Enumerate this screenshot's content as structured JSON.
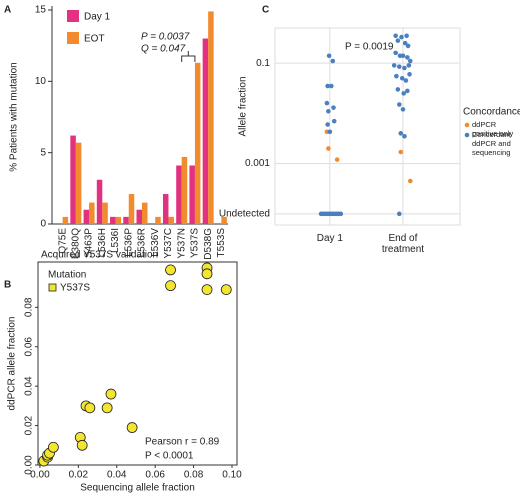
{
  "chart_data": [
    {
      "type": "bar",
      "panel": "A",
      "y_label": "% Patients with mutation",
      "categories": [
        "Q75E",
        "E380Q",
        "S463P",
        "L536H",
        "L536I",
        "L536P",
        "L536R",
        "L536V",
        "Y537C",
        "Y537N",
        "Y537S",
        "D538G",
        "T553S"
      ],
      "series": [
        {
          "name": "Day 1",
          "color": "#e2327f",
          "values": [
            0,
            6.2,
            1.0,
            3.1,
            0.5,
            0.5,
            1.0,
            0,
            2.1,
            4.1,
            4.1,
            13.0,
            0
          ]
        },
        {
          "name": "EOT",
          "color": "#f28a2e",
          "values": [
            0.5,
            5.7,
            1.5,
            1.5,
            0.5,
            2.1,
            1.5,
            0.5,
            0.5,
            4.7,
            11.3,
            14.9,
            0.5
          ]
        }
      ],
      "ylim": [
        0,
        15
      ],
      "yticks": [
        0,
        5,
        10,
        15
      ],
      "annotations": [
        "P = 0.0037",
        "Q = 0.047"
      ]
    },
    {
      "type": "scatter",
      "panel": "B",
      "title": "Acquired Y537S validation",
      "x_label": "Sequencing allele fraction",
      "y_label": "ddPCR allele fraction",
      "legend_title": "Mutation",
      "series": [
        {
          "name": "Y537S",
          "color": "#f4e531",
          "x": [
            0.002,
            0.004,
            0.004,
            0.005,
            0.007,
            0.021,
            0.022,
            0.024,
            0.026,
            0.035,
            0.037,
            0.048,
            0.068,
            0.068,
            0.087,
            0.087,
            0.087,
            0.097
          ],
          "values": [
            0.002,
            0.004,
            0.005,
            0.006,
            0.009,
            0.014,
            0.01,
            0.03,
            0.029,
            0.029,
            0.036,
            0.019,
            0.099,
            0.091,
            0.1,
            0.097,
            0.089,
            0.089
          ]
        }
      ],
      "xlim": [
        -0.001,
        0.1026
      ],
      "ylim": [
        0,
        0.103
      ],
      "xticks": [
        {
          "value": 0,
          "label": "0.00"
        },
        {
          "value": 0.02,
          "label": "0.02"
        },
        {
          "value": 0.04,
          "label": "0.04"
        },
        {
          "value": 0.06,
          "label": "0.06"
        },
        {
          "value": 0.08,
          "label": "0.08"
        },
        {
          "value": 0.1,
          "label": "0.10"
        }
      ],
      "yticks": [
        {
          "value": 0,
          "label": "0.00"
        },
        {
          "value": 0.02,
          "label": "0.02"
        },
        {
          "value": 0.04,
          "label": "0.04"
        },
        {
          "value": 0.06,
          "label": "0.06"
        },
        {
          "value": 0.08,
          "label": "0.08"
        }
      ],
      "annotations": [
        "Pearson r = 0.89",
        "P < 0.0001"
      ]
    },
    {
      "type": "scatter",
      "panel": "C",
      "y_label": "Allele fraction",
      "legend_title": "Concordance",
      "log_scale_y": true,
      "grid": true,
      "series": [
        {
          "name": "ddPCR positive only",
          "color": "#f28a2e",
          "x": [
            0.96,
            0.98,
            1.1,
            1.97,
            2.1
          ],
          "values": [
            0.0043,
            0.002,
            0.0012,
            0.0017,
            0.00045
          ]
        },
        {
          "name": "Concordant ddPCR and sequencing",
          "color": "#4b80bf",
          "x": [
            0.99,
            1.04,
            0.97,
            1.02,
            0.96,
            1.05,
            0.98,
            1.06,
            0.97,
            1.0,
            0.88,
            0.91,
            0.94,
            0.97,
            1.0,
            1.03,
            1.06,
            1.09,
            1.12,
            1.15,
            1.9,
            1.98,
            2.05,
            1.93,
            2.03,
            2.07,
            1.9,
            1.96,
            2.0,
            2.06,
            2.1,
            1.88,
            1.95,
            2.02,
            2.08,
            1.91,
            1.99,
            2.04,
            2.09,
            1.93,
            2.01,
            2.06,
            1.95,
            2.0,
            1.97,
            2.02,
            1.95
          ],
          "values": [
            0.14,
            0.11,
            0.035,
            0.035,
            0.016,
            0.013,
            0.011,
            0.007,
            0.006,
            0.0043,
            0.0001,
            0.0001,
            0.0001,
            0.0001,
            0.0001,
            0.0001,
            0.0001,
            0.0001,
            0.0001,
            0.0001,
            0.35,
            0.33,
            0.35,
            0.28,
            0.25,
            0.22,
            0.16,
            0.14,
            0.14,
            0.13,
            0.11,
            0.09,
            0.085,
            0.08,
            0.09,
            0.055,
            0.05,
            0.045,
            0.06,
            0.03,
            0.025,
            0.028,
            0.015,
            0.012,
            0.004,
            0.0035,
            0.0001
          ]
        }
      ],
      "xlim": [
        0.25,
        2.78
      ],
      "ylim": [
        6e-05,
        0.5
      ],
      "xticks": [
        {
          "value": 1,
          "label": "Day 1"
        },
        {
          "value": 2,
          "label": "End of treatment"
        }
      ],
      "yticks": [
        {
          "value": 0.0001,
          "label": "Undetected"
        },
        0.001,
        0.1
      ],
      "annotations": [
        "P = 0.0019"
      ]
    }
  ]
}
